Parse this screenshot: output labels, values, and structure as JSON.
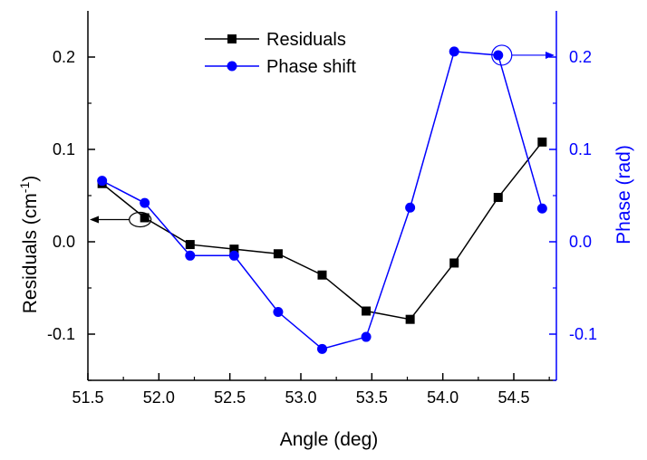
{
  "chart_data": {
    "type": "line",
    "title": "",
    "xlabel": "Angle (deg)",
    "ylabel_left": "Residuals (cm",
    "ylabel_left_sup": "-1",
    "ylabel_left_close": ")",
    "ylabel_right": "Phase (rad)",
    "xlim": [
      51.5,
      54.8
    ],
    "ylim_left": [
      -0.15,
      0.25
    ],
    "ylim_right": [
      -0.15,
      0.25
    ],
    "x_ticks": [
      51.5,
      52.0,
      52.5,
      53.0,
      53.5,
      54.0,
      54.5
    ],
    "x_tick_labels": [
      "51.5",
      "52.0",
      "52.5",
      "53.0",
      "53.5",
      "54.0",
      "54.5"
    ],
    "y_left_ticks": [
      -0.1,
      0.0,
      0.1,
      0.2
    ],
    "y_left_tick_labels": [
      "-0.1",
      "0.0",
      "0.1",
      "0.2"
    ],
    "y_right_ticks": [
      -0.1,
      0.0,
      0.1,
      0.2
    ],
    "y_right_tick_labels": [
      "-0.1",
      "0.0",
      "0.1",
      "0.2"
    ],
    "legend_position": "top-center",
    "series": [
      {
        "name": "Residuals",
        "axis": "left",
        "color": "#000000",
        "marker": "square",
        "x": [
          51.6,
          51.9,
          52.22,
          52.53,
          52.84,
          53.15,
          53.46,
          53.77,
          54.08,
          54.39,
          54.7
        ],
        "values": [
          0.063,
          0.026,
          -0.003,
          -0.008,
          -0.013,
          -0.036,
          -0.075,
          -0.084,
          -0.023,
          0.048,
          0.108
        ]
      },
      {
        "name": "Phase shift",
        "axis": "right",
        "color": "#0000ff",
        "marker": "circle",
        "x": [
          51.6,
          51.9,
          52.22,
          52.53,
          52.84,
          53.15,
          53.46,
          53.77,
          54.08,
          54.39,
          54.7
        ],
        "values": [
          0.066,
          0.042,
          -0.015,
          -0.015,
          -0.076,
          -0.116,
          -0.103,
          0.037,
          0.206,
          0.202,
          0.036
        ]
      }
    ],
    "annotations": [
      {
        "series": "Residuals",
        "point_index": 1,
        "arrow_direction": "left"
      },
      {
        "series": "Phase shift",
        "point_index": 9,
        "arrow_direction": "right"
      }
    ]
  }
}
